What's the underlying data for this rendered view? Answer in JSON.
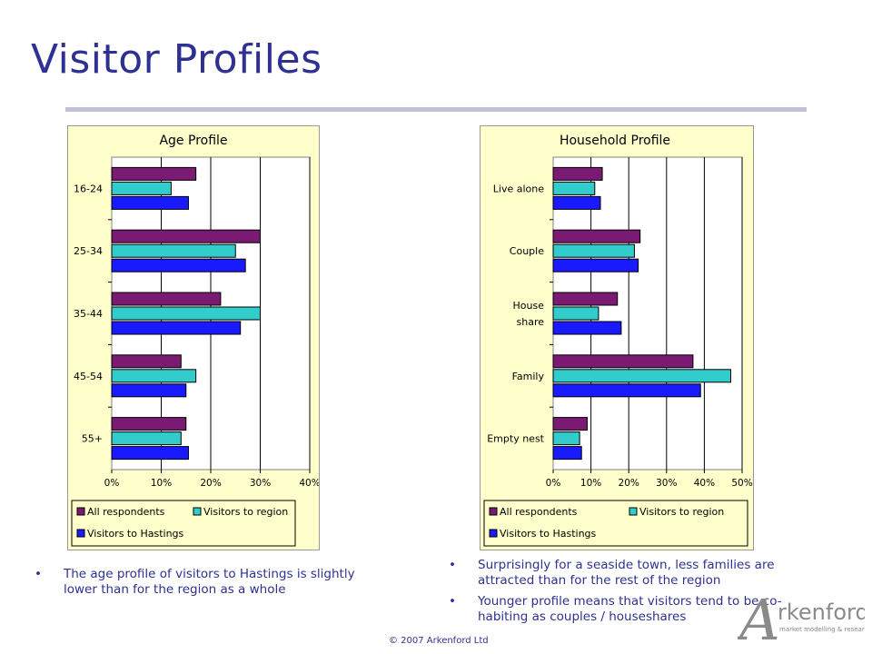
{
  "title": "Visitor Profiles",
  "copyright": "© 2007 Arkenford Ltd",
  "logo": {
    "letter": "A",
    "word": "rkenford",
    "tagline": "market modelling & research"
  },
  "left_bullets": [
    "The age profile of visitors to Hastings is slightly lower than for the region as a whole"
  ],
  "right_bullets": [
    "Surprisingly for a seaside town, less families are attracted than for the rest of the region",
    "Younger profile means that visitors tend to be co-habiting as couples / houseshares"
  ],
  "colors": {
    "all_respondents": "#7b1a72",
    "visitors_region": "#33cccc",
    "visitors_hastings": "#1a1aff",
    "chart_bg": "#ffffcc",
    "text": "#2e3192"
  },
  "chart_data": [
    {
      "type": "bar",
      "orientation": "horizontal",
      "title": "Age Profile",
      "categories": [
        "16-24",
        "25-34",
        "35-44",
        "45-54",
        "55+"
      ],
      "series": [
        {
          "name": "All respondents",
          "values": [
            17,
            30,
            22,
            14,
            15
          ]
        },
        {
          "name": "Visitors to region",
          "values": [
            12,
            25,
            30,
            17,
            14
          ]
        },
        {
          "name": "Visitors to Hastings",
          "values": [
            15.5,
            27,
            26,
            15,
            15.5
          ]
        }
      ],
      "ticks": [
        "0%",
        "10%",
        "20%",
        "30%",
        "40%"
      ],
      "xlim": [
        0,
        40
      ],
      "grid": true,
      "legend": "bottom"
    },
    {
      "type": "bar",
      "orientation": "horizontal",
      "title": "Household Profile",
      "categories": [
        "Live alone",
        "Couple",
        "House share",
        "Family",
        "Empty nest"
      ],
      "series": [
        {
          "name": "All respondents",
          "values": [
            13,
            23,
            17,
            37,
            9
          ]
        },
        {
          "name": "Visitors to region",
          "values": [
            11,
            21.5,
            12,
            47,
            7
          ]
        },
        {
          "name": "Visitors to Hastings",
          "values": [
            12.5,
            22.5,
            18,
            39,
            7.5
          ]
        }
      ],
      "ticks": [
        "0%",
        "10%",
        "20%",
        "30%",
        "40%",
        "50%"
      ],
      "xlim": [
        0,
        50
      ],
      "grid": true,
      "legend": "bottom"
    }
  ]
}
